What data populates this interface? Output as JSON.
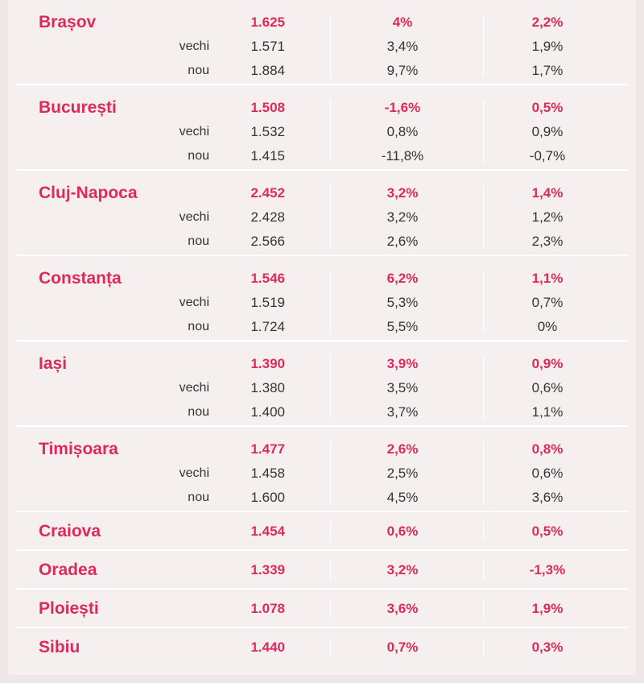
{
  "groups": [
    {
      "city": "Brașov",
      "total": {
        "value": "1.625",
        "p1": "4%",
        "p2": "2,2%"
      },
      "vechi": {
        "label": "vechi",
        "value": "1.571",
        "p1": "3,4%",
        "p2": "1,9%"
      },
      "nou": {
        "label": "nou",
        "value": "1.884",
        "p1": "9,7%",
        "p2": "1,7%"
      }
    },
    {
      "city": "București",
      "total": {
        "value": "1.508",
        "p1": "-1,6%",
        "p2": "0,5%"
      },
      "vechi": {
        "label": "vechi",
        "value": "1.532",
        "p1": "0,8%",
        "p2": "0,9%"
      },
      "nou": {
        "label": "nou",
        "value": "1.415",
        "p1": "-11,8%",
        "p2": "-0,7%"
      }
    },
    {
      "city": "Cluj-Napoca",
      "total": {
        "value": "2.452",
        "p1": "3,2%",
        "p2": "1,4%"
      },
      "vechi": {
        "label": "vechi",
        "value": "2.428",
        "p1": "3,2%",
        "p2": "1,2%"
      },
      "nou": {
        "label": "nou",
        "value": "2.566",
        "p1": "2,6%",
        "p2": "2,3%"
      }
    },
    {
      "city": "Constanța",
      "total": {
        "value": "1.546",
        "p1": "6,2%",
        "p2": "1,1%"
      },
      "vechi": {
        "label": "vechi",
        "value": "1.519",
        "p1": "5,3%",
        "p2": "0,7%"
      },
      "nou": {
        "label": "nou",
        "value": "1.724",
        "p1": "5,5%",
        "p2": "0%"
      }
    },
    {
      "city": "Iași",
      "total": {
        "value": "1.390",
        "p1": "3,9%",
        "p2": "0,9%"
      },
      "vechi": {
        "label": "vechi",
        "value": "1.380",
        "p1": "3,5%",
        "p2": "0,6%"
      },
      "nou": {
        "label": "nou",
        "value": "1.400",
        "p1": "3,7%",
        "p2": "1,1%"
      }
    },
    {
      "city": "Timișoara",
      "total": {
        "value": "1.477",
        "p1": "2,6%",
        "p2": "0,8%"
      },
      "vechi": {
        "label": "vechi",
        "value": "1.458",
        "p1": "2,5%",
        "p2": "0,6%"
      },
      "nou": {
        "label": "nou",
        "value": "1.600",
        "p1": "4,5%",
        "p2": "3,6%"
      }
    }
  ],
  "singles": [
    {
      "city": "Craiova",
      "value": "1.454",
      "p1": "0,6%",
      "p2": "0,5%"
    },
    {
      "city": "Oradea",
      "value": "1.339",
      "p1": "3,2%",
      "p2": "-1,3%"
    },
    {
      "city": "Ploiești",
      "value": "1.078",
      "p1": "3,6%",
      "p2": "1,9%"
    },
    {
      "city": "Sibiu",
      "value": "1.440",
      "p1": "0,7%",
      "p2": "0,3%"
    }
  ],
  "colors": {
    "accent": "#dc2a5c",
    "background": "#f6efef"
  }
}
